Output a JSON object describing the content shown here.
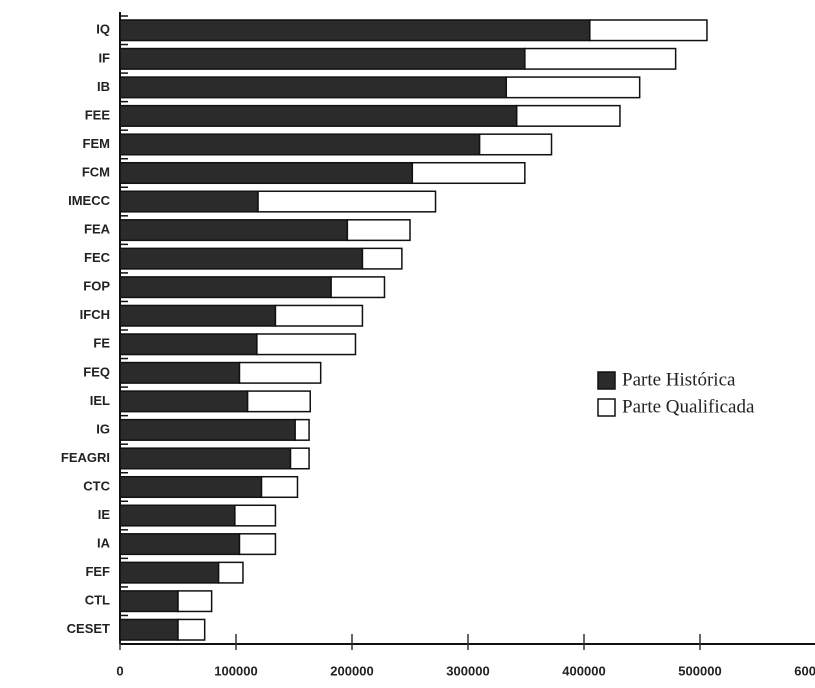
{
  "chart_data": {
    "type": "stacked-bar-horizontal",
    "categories": [
      "IQ",
      "IF",
      "IB",
      "FEE",
      "FEM",
      "FCM",
      "IMECC",
      "FEA",
      "FEC",
      "FOP",
      "IFCH",
      "FE",
      "FEQ",
      "IEL",
      "IG",
      "FEAGRI",
      "CTC",
      "IE",
      "IA",
      "FEF",
      "CTL",
      "CESET"
    ],
    "series": [
      {
        "name": "Parte Histórica",
        "color": "#2b2b2b",
        "values": [
          405000,
          349000,
          333000,
          342000,
          310000,
          252000,
          119000,
          196000,
          209000,
          182000,
          134000,
          118000,
          103000,
          110000,
          151000,
          147000,
          122000,
          99000,
          103000,
          85000,
          50000,
          50000
        ]
      },
      {
        "name": "Parte Qualificada",
        "color": "#ffffff",
        "values": [
          101000,
          130000,
          115000,
          89000,
          62000,
          97000,
          153000,
          54000,
          34000,
          46000,
          75000,
          85000,
          70000,
          54000,
          12000,
          16000,
          31000,
          35000,
          31000,
          21000,
          29000,
          23000
        ]
      }
    ],
    "xlim": [
      0,
      600000
    ],
    "xticks": [
      0,
      100000,
      200000,
      300000,
      400000,
      500000,
      600000
    ],
    "legend": "right"
  }
}
